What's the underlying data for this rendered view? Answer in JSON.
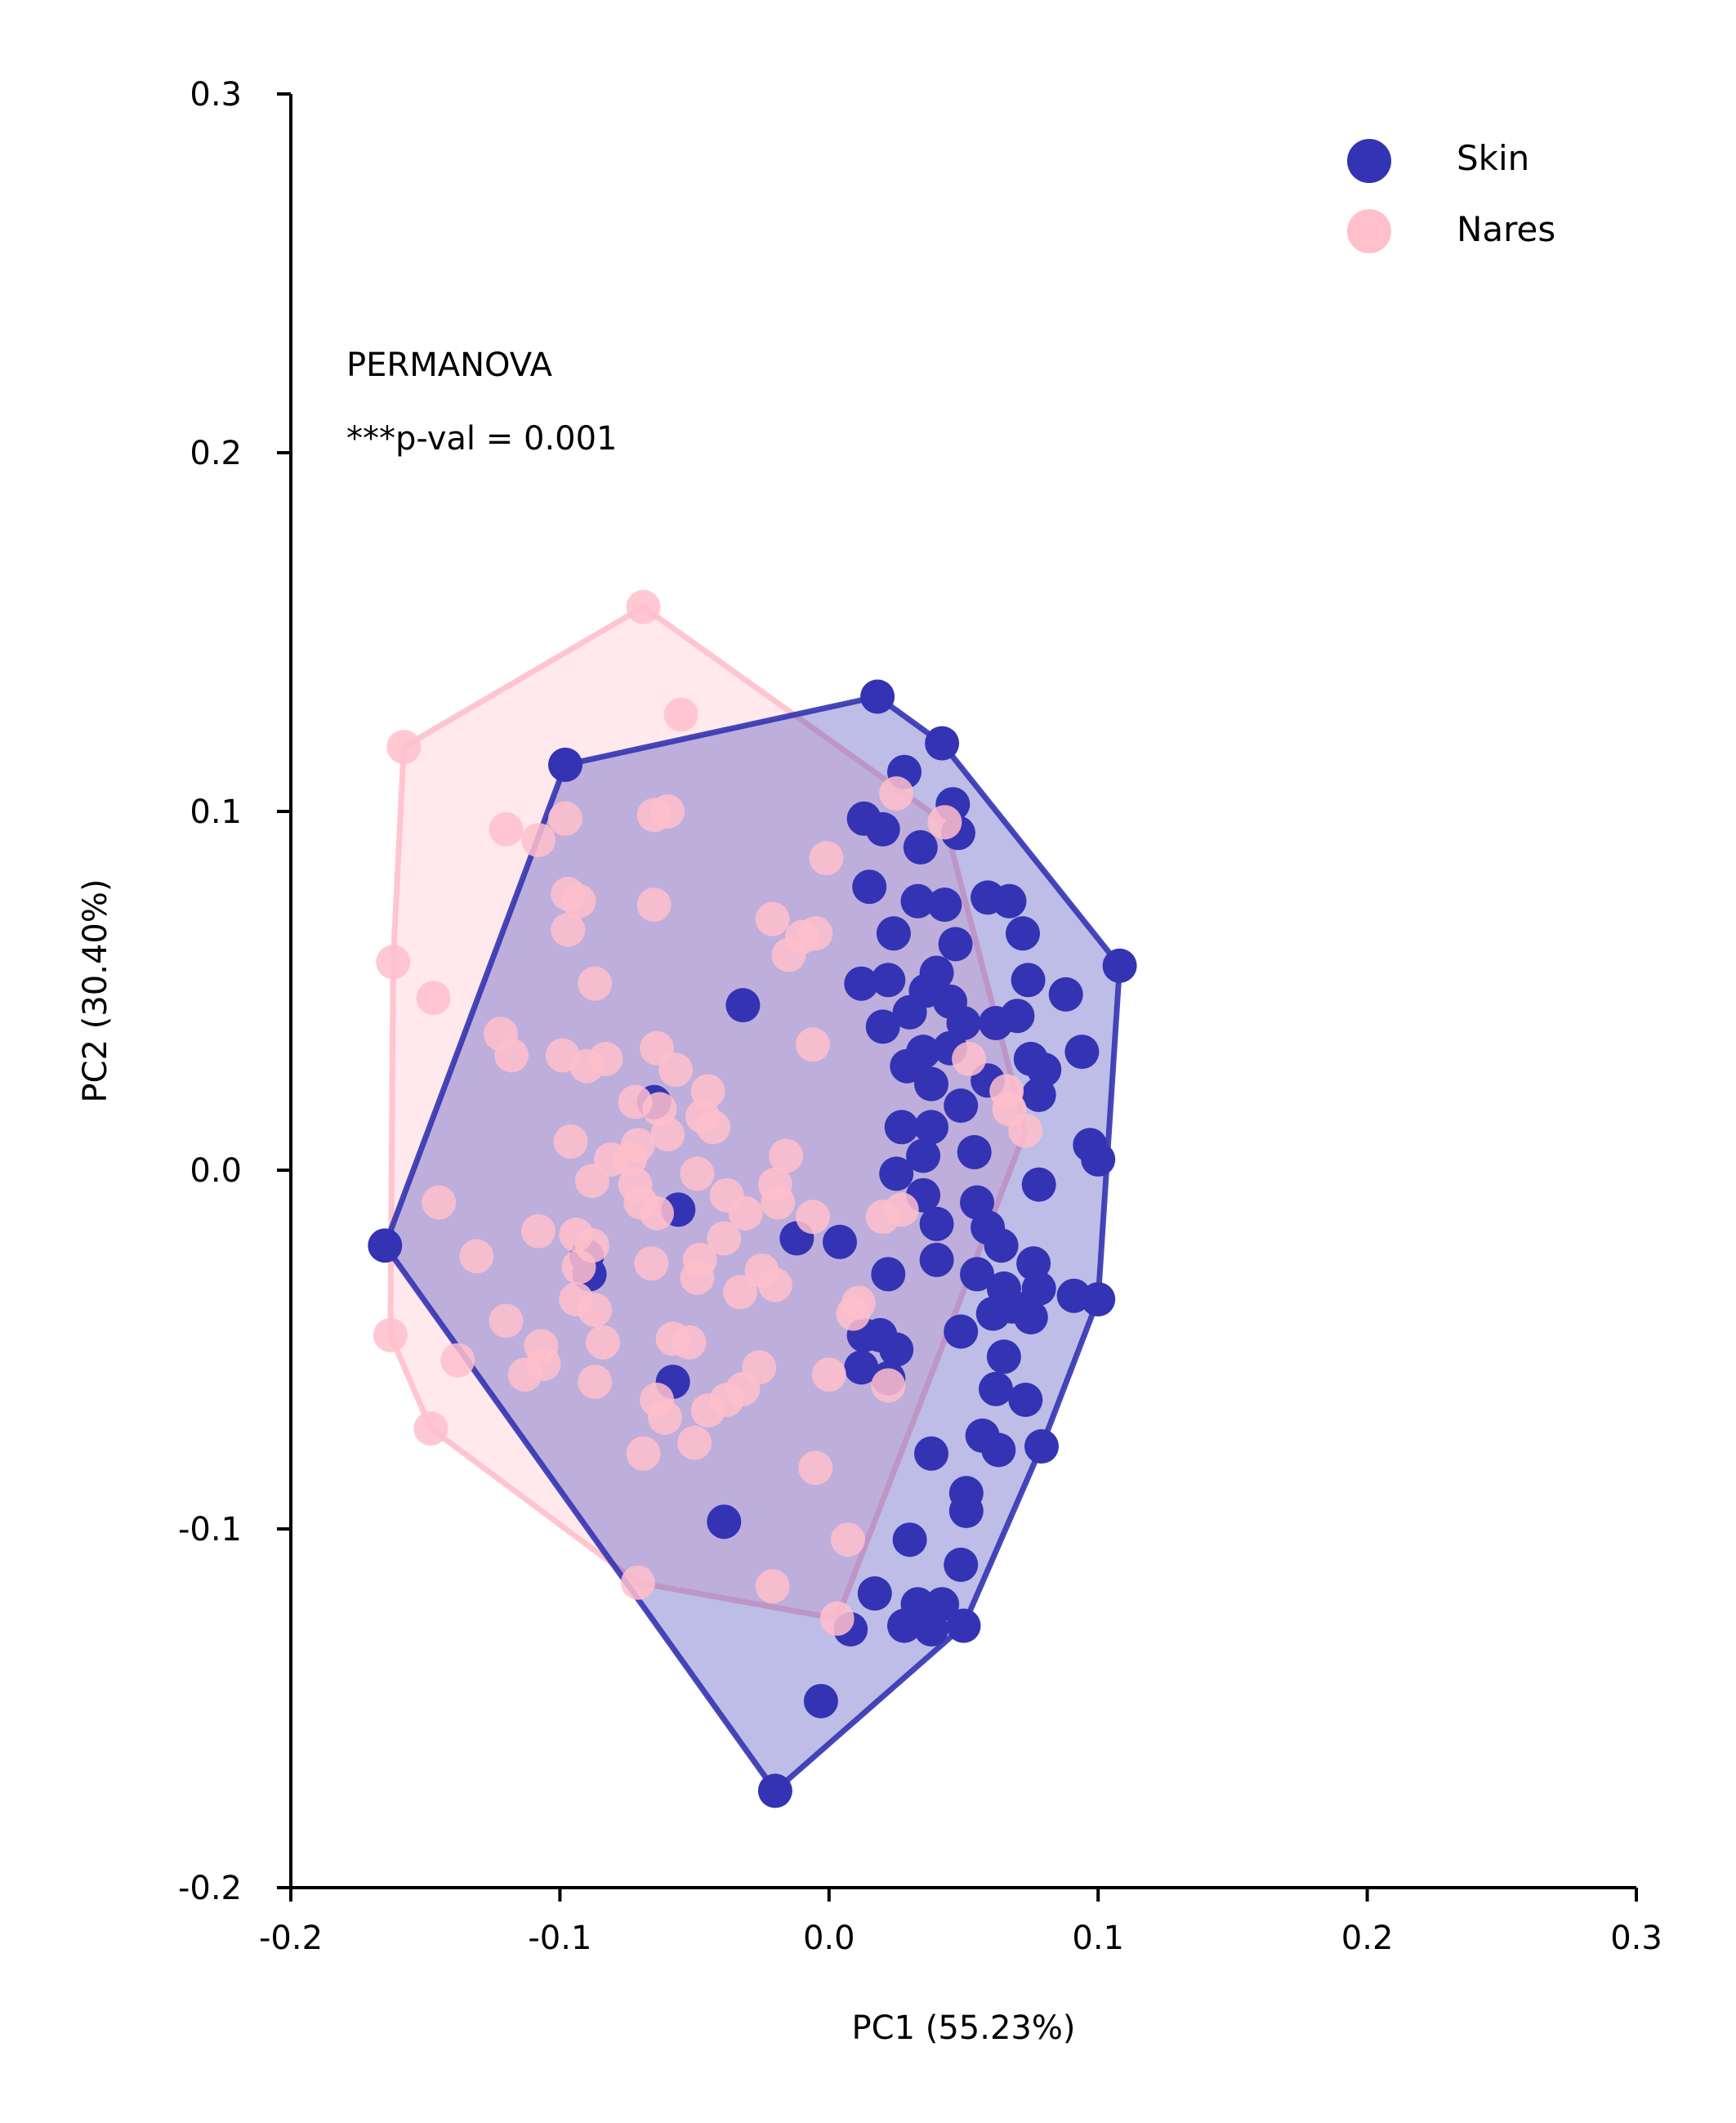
{
  "chart_data": {
    "type": "scatter",
    "xlabel": "PC1 (55.23%)",
    "ylabel": "PC2 (30.40%)",
    "xlim": [
      -0.2,
      0.3
    ],
    "ylim": [
      -0.2,
      0.3
    ],
    "xticks": [
      -0.2,
      -0.1,
      0.0,
      0.1,
      0.2,
      0.3
    ],
    "yticks": [
      -0.2,
      -0.1,
      0.0,
      0.1,
      0.2,
      0.3
    ],
    "xtick_labels": [
      "-0.2",
      "-0.1",
      "0.0",
      "0.1",
      "0.2",
      "0.3"
    ],
    "ytick_labels": [
      "-0.2",
      "-0.1",
      "0.0",
      "0.1",
      "0.2",
      "0.3"
    ],
    "grid": false,
    "legend_position": "top-right",
    "annotation": [
      "PERMANOVA",
      "***p-val = 0.001"
    ],
    "series": [
      {
        "name": "Nares",
        "color": "#FFC0CB",
        "hull_color": "#FFC0CB",
        "points": [
          [
            -0.069,
            0.157
          ],
          [
            -0.055,
            0.127
          ],
          [
            -0.158,
            0.118
          ],
          [
            -0.098,
            0.098
          ],
          [
            -0.12,
            0.095
          ],
          [
            -0.065,
            0.099
          ],
          [
            -0.06,
            0.1
          ],
          [
            -0.108,
            0.092
          ],
          [
            -0.001,
            0.087
          ],
          [
            -0.097,
            0.077
          ],
          [
            -0.093,
            0.075
          ],
          [
            -0.065,
            0.074
          ],
          [
            -0.097,
            0.067
          ],
          [
            -0.021,
            0.07
          ],
          [
            -0.005,
            0.066
          ],
          [
            -0.01,
            0.065
          ],
          [
            -0.015,
            0.06
          ],
          [
            -0.162,
            0.058
          ],
          [
            -0.087,
            0.052
          ],
          [
            -0.147,
            0.048
          ],
          [
            -0.122,
            0.038
          ],
          [
            -0.006,
            0.035
          ],
          [
            -0.118,
            0.032
          ],
          [
            -0.099,
            0.032
          ],
          [
            -0.09,
            0.029
          ],
          [
            -0.083,
            0.031
          ],
          [
            -0.064,
            0.034
          ],
          [
            -0.057,
            0.028
          ],
          [
            -0.045,
            0.022
          ],
          [
            -0.072,
            0.019
          ],
          [
            -0.063,
            0.017
          ],
          [
            -0.047,
            0.015
          ],
          [
            -0.043,
            0.012
          ],
          [
            -0.06,
            0.01
          ],
          [
            -0.096,
            0.008
          ],
          [
            -0.071,
            0.007
          ],
          [
            -0.074,
            0.003
          ],
          [
            -0.081,
            0.003
          ],
          [
            -0.016,
            0.004
          ],
          [
            -0.049,
            -0.001
          ],
          [
            -0.088,
            -0.003
          ],
          [
            -0.072,
            -0.004
          ],
          [
            -0.02,
            -0.004
          ],
          [
            -0.145,
            -0.009
          ],
          [
            -0.07,
            -0.009
          ],
          [
            -0.038,
            -0.007
          ],
          [
            -0.019,
            -0.009
          ],
          [
            -0.064,
            -0.012
          ],
          [
            -0.094,
            -0.018
          ],
          [
            -0.108,
            -0.017
          ],
          [
            -0.031,
            -0.012
          ],
          [
            -0.006,
            -0.013
          ],
          [
            -0.088,
            -0.021
          ],
          [
            -0.039,
            -0.019
          ],
          [
            -0.131,
            -0.024
          ],
          [
            -0.048,
            -0.025
          ],
          [
            -0.066,
            -0.026
          ],
          [
            -0.093,
            -0.027
          ],
          [
            -0.025,
            -0.028
          ],
          [
            -0.049,
            -0.03
          ],
          [
            -0.02,
            -0.032
          ],
          [
            -0.033,
            -0.034
          ],
          [
            -0.094,
            -0.036
          ],
          [
            -0.087,
            -0.039
          ],
          [
            -0.12,
            -0.042
          ],
          [
            -0.058,
            -0.047
          ],
          [
            -0.052,
            -0.048
          ],
          [
            -0.084,
            -0.048
          ],
          [
            -0.163,
            -0.046
          ],
          [
            -0.107,
            -0.049
          ],
          [
            -0.106,
            -0.054
          ],
          [
            -0.138,
            -0.053
          ],
          [
            -0.026,
            -0.055
          ],
          [
            -0.113,
            -0.057
          ],
          [
            -0.087,
            -0.059
          ],
          [
            -0.032,
            -0.061
          ],
          [
            -0.038,
            -0.064
          ],
          [
            -0.064,
            -0.064
          ],
          [
            -0.045,
            -0.067
          ],
          [
            -0.061,
            -0.069
          ],
          [
            -0.05,
            -0.076
          ],
          [
            -0.069,
            -0.079
          ],
          [
            -0.148,
            -0.072
          ],
          [
            -0.005,
            -0.083
          ],
          [
            -0.071,
            -0.115
          ],
          [
            -0.021,
            -0.116
          ],
          [
            0.003,
            -0.125
          ],
          [
            0.007,
            -0.103
          ],
          [
            0.009,
            -0.04
          ],
          [
            0.011,
            -0.037
          ],
          [
            0.027,
            -0.011
          ],
          [
            0.02,
            -0.013
          ],
          [
            0.022,
            -0.06
          ],
          [
            0.0,
            -0.057
          ],
          [
            0.073,
            0.011
          ],
          [
            0.067,
            0.017
          ],
          [
            0.066,
            0.022
          ],
          [
            0.052,
            0.031
          ],
          [
            0.043,
            0.097
          ],
          [
            0.025,
            0.105
          ]
        ]
      },
      {
        "name": "Skin",
        "color": "#3333B3",
        "hull_color": "#3333B3",
        "points": [
          [
            0.018,
            0.132
          ],
          [
            0.042,
            0.119
          ],
          [
            0.028,
            0.111
          ],
          [
            0.046,
            0.102
          ],
          [
            0.013,
            0.098
          ],
          [
            0.02,
            0.095
          ],
          [
            0.048,
            0.094
          ],
          [
            0.034,
            0.09
          ],
          [
            0.015,
            0.079
          ],
          [
            0.047,
            0.063
          ],
          [
            0.059,
            0.076
          ],
          [
            0.067,
            0.075
          ],
          [
            0.072,
            0.066
          ],
          [
            0.033,
            0.075
          ],
          [
            0.043,
            0.074
          ],
          [
            0.024,
            0.066
          ],
          [
            0.108,
            0.057
          ],
          [
            0.012,
            0.052
          ],
          [
            0.022,
            0.053
          ],
          [
            0.04,
            0.055
          ],
          [
            0.036,
            0.05
          ],
          [
            0.074,
            0.053
          ],
          [
            0.088,
            0.049
          ],
          [
            0.045,
            0.047
          ],
          [
            0.02,
            0.04
          ],
          [
            0.03,
            0.044
          ],
          [
            0.05,
            0.041
          ],
          [
            0.062,
            0.041
          ],
          [
            0.07,
            0.043
          ],
          [
            -0.032,
            0.046
          ],
          [
            0.035,
            0.033
          ],
          [
            0.045,
            0.034
          ],
          [
            0.075,
            0.031
          ],
          [
            0.08,
            0.028
          ],
          [
            0.094,
            0.033
          ],
          [
            0.029,
            0.029
          ],
          [
            0.038,
            0.024
          ],
          [
            0.059,
            0.025
          ],
          [
            0.078,
            0.021
          ],
          [
            0.049,
            0.018
          ],
          [
            -0.065,
            0.019
          ],
          [
            0.027,
            0.012
          ],
          [
            0.038,
            0.012
          ],
          [
            0.035,
            0.004
          ],
          [
            0.054,
            0.005
          ],
          [
            0.097,
            0.007
          ],
          [
            0.1,
            0.003
          ],
          [
            0.025,
            -0.001
          ],
          [
            0.078,
            -0.004
          ],
          [
            0.035,
            -0.007
          ],
          [
            0.055,
            -0.009
          ],
          [
            -0.056,
            -0.011
          ],
          [
            -0.165,
            -0.021
          ],
          [
            -0.012,
            -0.019
          ],
          [
            0.004,
            -0.02
          ],
          [
            0.04,
            -0.015
          ],
          [
            0.059,
            -0.016
          ],
          [
            0.064,
            -0.021
          ],
          [
            0.076,
            -0.026
          ],
          [
            0.04,
            -0.025
          ],
          [
            0.055,
            -0.029
          ],
          [
            0.022,
            -0.029
          ],
          [
            0.065,
            -0.033
          ],
          [
            0.078,
            -0.033
          ],
          [
            0.091,
            -0.035
          ],
          [
            0.1,
            -0.036
          ],
          [
            0.068,
            -0.038
          ],
          [
            0.061,
            -0.04
          ],
          [
            0.075,
            -0.041
          ],
          [
            0.049,
            -0.045
          ],
          [
            0.013,
            -0.046
          ],
          [
            0.065,
            -0.052
          ],
          [
            0.012,
            -0.055
          ],
          [
            0.025,
            -0.05
          ],
          [
            0.022,
            -0.058
          ],
          [
            -0.058,
            -0.059
          ],
          [
            0.062,
            -0.061
          ],
          [
            0.073,
            -0.064
          ],
          [
            0.057,
            -0.074
          ],
          [
            0.063,
            -0.078
          ],
          [
            0.079,
            -0.077
          ],
          [
            0.038,
            -0.079
          ],
          [
            0.051,
            -0.09
          ],
          [
            0.051,
            -0.095
          ],
          [
            -0.039,
            -0.098
          ],
          [
            0.03,
            -0.103
          ],
          [
            0.049,
            -0.11
          ],
          [
            0.017,
            -0.118
          ],
          [
            0.033,
            -0.121
          ],
          [
            0.042,
            -0.121
          ],
          [
            0.028,
            -0.127
          ],
          [
            0.008,
            -0.128
          ],
          [
            0.05,
            -0.127
          ],
          [
            -0.003,
            -0.148
          ],
          [
            -0.02,
            -0.173
          ],
          [
            -0.098,
            0.113
          ],
          [
            -0.09,
            -0.024
          ],
          [
            -0.089,
            -0.029
          ],
          [
            0.019,
            -0.046
          ],
          [
            0.038,
            -0.128
          ]
        ]
      }
    ]
  }
}
